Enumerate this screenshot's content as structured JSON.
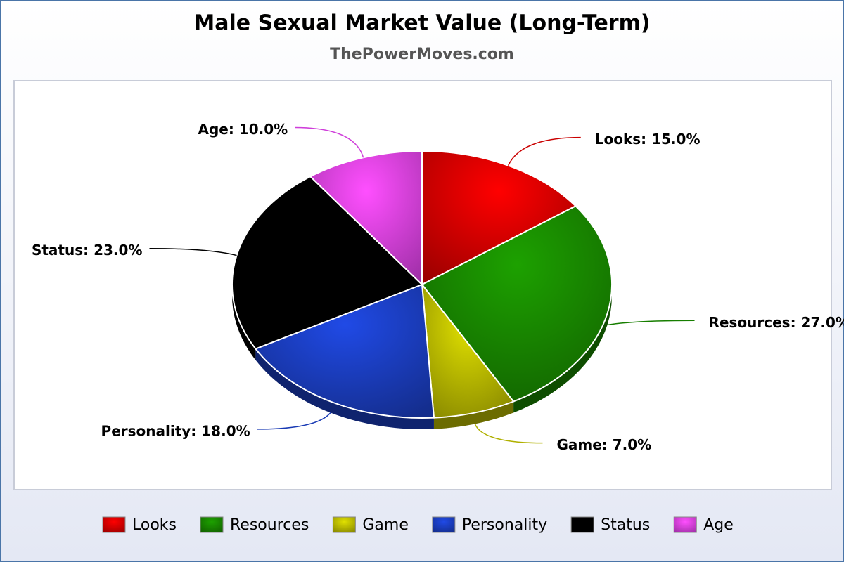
{
  "chart_data": {
    "type": "pie",
    "title": "Male Sexual Market Value (Long-Term)",
    "subtitle": "ThePowerMoves.com",
    "categories": [
      "Looks",
      "Resources",
      "Game",
      "Personality",
      "Status",
      "Age"
    ],
    "values": [
      15,
      27,
      7,
      18,
      23,
      10
    ],
    "value_labels": [
      "Looks: 15.0%",
      "Resources: 27.0%",
      "Game: 7.0%",
      "Personality: 18.0%",
      "Status: 23.0%",
      "Age: 10.0%"
    ],
    "colors": [
      "#e00000",
      "#198c00",
      "#c4c400",
      "#1c40c8",
      "#000000",
      "#e645f2"
    ],
    "legend": "bottom"
  }
}
